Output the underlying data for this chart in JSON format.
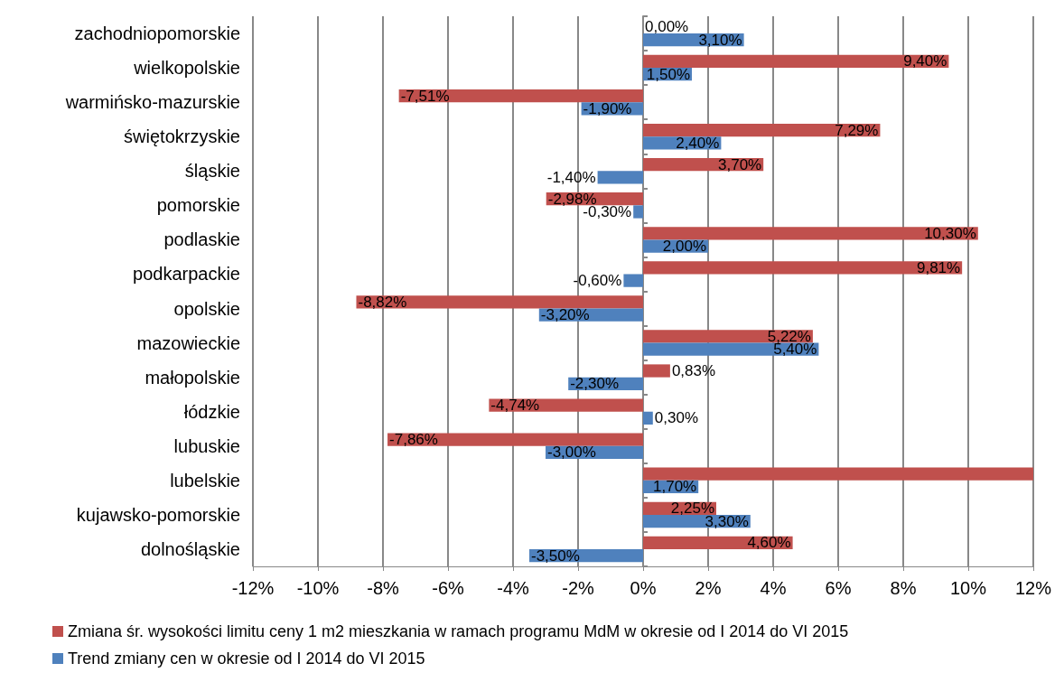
{
  "chart_data": {
    "type": "bar",
    "orientation": "horizontal",
    "categories": [
      "zachodniopomorskie",
      "wielkopolskie",
      "warmińsko-mazurskie",
      "świętokrzyskie",
      "śląskie",
      "pomorskie",
      "podlaskie",
      "podkarpackie",
      "opolskie",
      "mazowieckie",
      "małopolskie",
      "łódzkie",
      "lubuskie",
      "lubelskie",
      "kujawsko-pomorskie",
      "dolnośląskie"
    ],
    "series": [
      {
        "name": "Zmiana śr. wysokości limitu ceny 1 m2 mieszkania w ramach programu MdM w okresie od I 2014 do VI 2015",
        "color": "#c0504d",
        "values": [
          0,
          9.4,
          -7.51,
          7.29,
          3.7,
          -2.98,
          10.3,
          9.81,
          -8.82,
          5.22,
          0.83,
          -4.74,
          -7.86,
          12,
          2.25,
          4.6
        ],
        "value_labels": [
          "0,00%",
          "9,40%",
          "-7,51%",
          "7,29%",
          "3,70%",
          "-2,98%",
          "10,30%",
          "9,81%",
          "-8,82%",
          "5,22%",
          "0,83%",
          "-4,74%",
          "-7,86%",
          null,
          "2,25%",
          "4,60%"
        ]
      },
      {
        "name": "Trend zmiany cen w okresie od I 2014 do VI 2015",
        "color": "#4f81bd",
        "values": [
          3.1,
          1.5,
          -1.9,
          2.4,
          -1.4,
          -0.3,
          2.0,
          -0.6,
          -3.2,
          5.4,
          -2.3,
          0.3,
          -3.0,
          1.7,
          3.3,
          -3.5
        ],
        "value_labels": [
          "3,10%",
          "1,50%",
          "-1,90%",
          "2,40%",
          "-1,40%",
          "-0,30%",
          "2,00%",
          "-0,60%",
          "-3,20%",
          "5,40%",
          "-2,30%",
          "0,30%",
          "-3,00%",
          "1,70%",
          "3,30%",
          "-3,50%"
        ]
      }
    ],
    "xlim": [
      -12,
      12
    ],
    "xticks": [
      {
        "value": -12,
        "label": "-12%"
      },
      {
        "value": -10,
        "label": "-10%"
      },
      {
        "value": -8,
        "label": "-8%"
      },
      {
        "value": -6,
        "label": "-6%"
      },
      {
        "value": -4,
        "label": "-4%"
      },
      {
        "value": -2,
        "label": "-2%"
      },
      {
        "value": 0,
        "label": "0%"
      },
      {
        "value": 2,
        "label": "2%"
      },
      {
        "value": 4,
        "label": "4%"
      },
      {
        "value": 6,
        "label": "6%"
      },
      {
        "value": 8,
        "label": "8%"
      },
      {
        "value": 10,
        "label": "10%"
      },
      {
        "value": 12,
        "label": "12%"
      }
    ],
    "grid": "x",
    "legend": "bottom left"
  }
}
